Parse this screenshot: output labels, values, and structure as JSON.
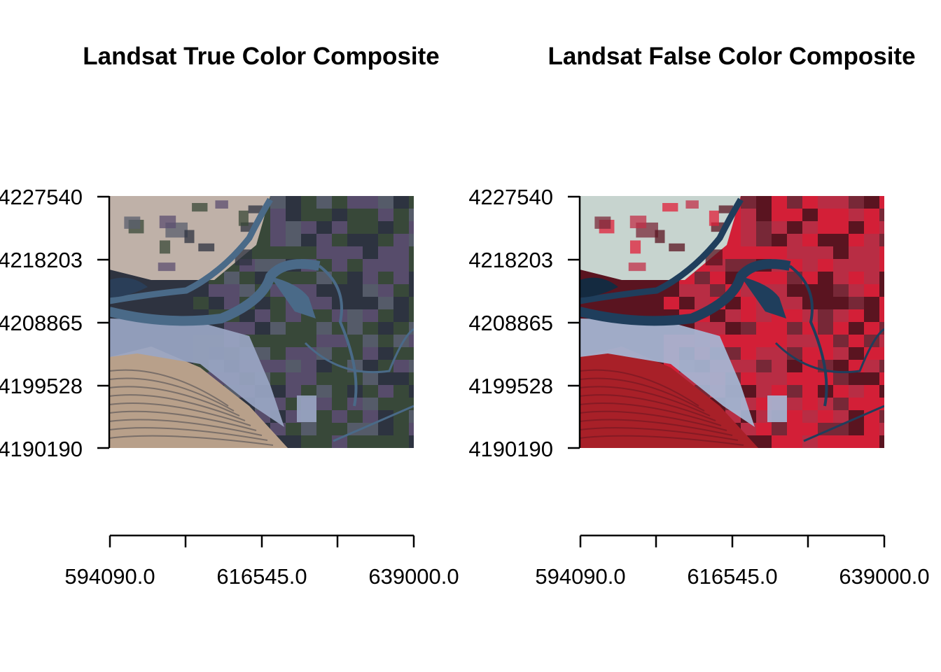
{
  "figure": {
    "panels": [
      {
        "title": "Landsat True Color Composite",
        "image_kind": "true-color",
        "y_ticks": [
          "4227540",
          "4218203",
          "4208865",
          "4199528",
          "4190190"
        ],
        "x_ticks": [
          "594090.0",
          "616545.0",
          "639000.0"
        ],
        "colors": {
          "background": "#5a5f6e",
          "hills": "#b8a08a",
          "farmland": "#bfb1a8",
          "water": "#4a6a88",
          "dark_water": "#2a3e58",
          "urban": "#9aa6c4",
          "vegetation": "#3a4a38",
          "fields_dark": "#2e3340",
          "fields_purple": "#5c4f70"
        }
      },
      {
        "title": "Landsat False Color Composite",
        "image_kind": "false-color",
        "y_ticks": [
          "4227540",
          "4218203",
          "4208865",
          "4199528",
          "4190190"
        ],
        "x_ticks": [
          "594090.0",
          "616545.0",
          "639000.0"
        ],
        "colors": {
          "background": "#7a2a3a",
          "hills": "#a82028",
          "farmland": "#c7d4cf",
          "water": "#1f3e5c",
          "dark_water": "#142a40",
          "urban": "#a6b8d6",
          "vegetation": "#e0203a",
          "fields_dark": "#5a1420",
          "fields_purple": "#c23048"
        }
      }
    ]
  }
}
